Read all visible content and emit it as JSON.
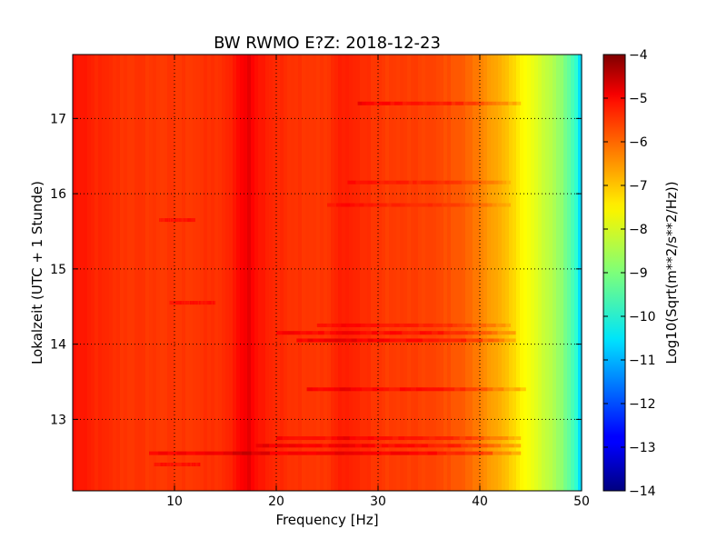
{
  "chart_data": {
    "type": "heatmap",
    "title": "BW RWMO E?Z: 2018-12-23",
    "xlabel": "Frequency [Hz]",
    "ylabel": "Lokalzeit (UTC + 1 Stunde)",
    "colorbar_label": "Log10(Sqrt(m**2/s**2/Hz))",
    "xlim": [
      0,
      50
    ],
    "ylim": [
      17.85,
      12.05
    ],
    "y_inverted": true,
    "x_ticks": [
      10,
      20,
      30,
      40,
      50
    ],
    "x_tick_labels": [
      "10",
      "20",
      "30",
      "40",
      "50"
    ],
    "y_ticks": [
      13,
      14,
      15,
      16,
      17
    ],
    "y_tick_labels": [
      "13",
      "14",
      "15",
      "16",
      "17"
    ],
    "clim": [
      -14,
      -4
    ],
    "colorbar_ticks": [
      -4,
      -5,
      -6,
      -7,
      -8,
      -9,
      -10,
      -11,
      -12,
      -13,
      -14
    ],
    "colorbar_tick_labels": [
      "−4",
      "−5",
      "−6",
      "−7",
      "−8",
      "−9",
      "−10",
      "−11",
      "−12",
      "−13",
      "−14"
    ],
    "colormap": "jet",
    "grid": true,
    "spectrum_profile": {
      "frequency_hz": [
        0,
        2,
        5,
        10,
        15,
        16.5,
        17.3,
        18,
        20,
        25,
        26.5,
        30,
        35,
        38,
        40,
        42,
        44,
        46,
        48,
        49.5,
        50
      ],
      "log10_amplitude": [
        -5.4,
        -5.6,
        -5.75,
        -5.8,
        -5.7,
        -5.3,
        -5.0,
        -5.4,
        -5.65,
        -5.8,
        -5.5,
        -5.8,
        -5.9,
        -6.1,
        -6.5,
        -7.0,
        -7.6,
        -8.2,
        -8.8,
        -9.8,
        -11.0
      ]
    },
    "time_bands": [
      {
        "hour": 12.4,
        "f_start": 8,
        "f_end": 12.5,
        "delta": 0.4
      },
      {
        "hour": 12.55,
        "f_start": 7.5,
        "f_end": 44,
        "delta": 0.6
      },
      {
        "hour": 12.65,
        "f_start": 18,
        "f_end": 44,
        "delta": 0.5
      },
      {
        "hour": 12.75,
        "f_start": 20,
        "f_end": 44,
        "delta": 0.45
      },
      {
        "hour": 13.4,
        "f_start": 23,
        "f_end": 44.5,
        "delta": 0.5
      },
      {
        "hour": 14.05,
        "f_start": 22,
        "f_end": 43.5,
        "delta": 0.6
      },
      {
        "hour": 14.15,
        "f_start": 20,
        "f_end": 43.5,
        "delta": 0.5
      },
      {
        "hour": 14.25,
        "f_start": 24,
        "f_end": 43,
        "delta": 0.35
      },
      {
        "hour": 14.55,
        "f_start": 9.5,
        "f_end": 14,
        "delta": 0.4
      },
      {
        "hour": 15.65,
        "f_start": 8.5,
        "f_end": 12,
        "delta": 0.4
      },
      {
        "hour": 15.85,
        "f_start": 25,
        "f_end": 43,
        "delta": 0.25
      },
      {
        "hour": 16.15,
        "f_start": 27,
        "f_end": 43,
        "delta": 0.3
      },
      {
        "hour": 17.2,
        "f_start": 28,
        "f_end": 44,
        "delta": 0.5
      }
    ]
  }
}
